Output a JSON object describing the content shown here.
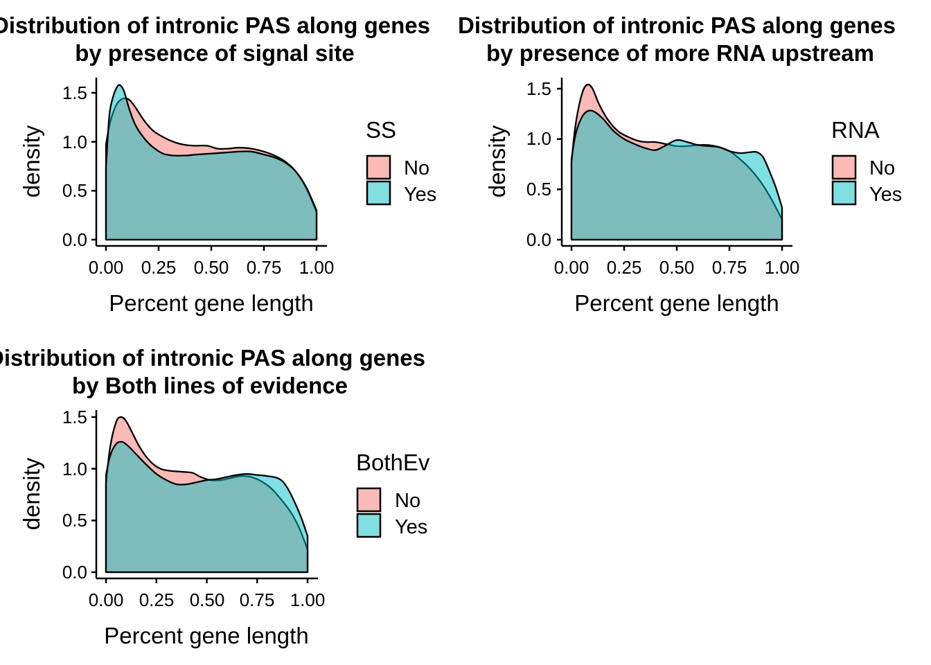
{
  "chart_data": [
    {
      "type": "area",
      "title_line1": "Distribution of intronic PAS along genes",
      "title_line2": "by presence of signal site",
      "xlabel": "Percent gene length",
      "ylabel": "density",
      "xlim": [
        0,
        1
      ],
      "ylim": [
        0,
        1.6
      ],
      "x_ticks": [
        "0.00",
        "0.25",
        "0.50",
        "0.75",
        "1.00"
      ],
      "y_ticks": [
        "0.0",
        "0.5",
        "1.0",
        "1.5"
      ],
      "legend": {
        "title": "SS",
        "items": [
          "No",
          "Yes"
        ]
      },
      "series": [
        {
          "name": "No",
          "color": "#F8766D",
          "points": [
            [
              0,
              0.97
            ],
            [
              0.02,
              1.2
            ],
            [
              0.05,
              1.38
            ],
            [
              0.08,
              1.44
            ],
            [
              0.11,
              1.43
            ],
            [
              0.14,
              1.35
            ],
            [
              0.18,
              1.22
            ],
            [
              0.22,
              1.12
            ],
            [
              0.27,
              1.05
            ],
            [
              0.32,
              1.0
            ],
            [
              0.37,
              0.97
            ],
            [
              0.42,
              0.96
            ],
            [
              0.48,
              0.96
            ],
            [
              0.53,
              0.93
            ],
            [
              0.58,
              0.93
            ],
            [
              0.63,
              0.94
            ],
            [
              0.69,
              0.93
            ],
            [
              0.75,
              0.9
            ],
            [
              0.8,
              0.86
            ],
            [
              0.85,
              0.8
            ],
            [
              0.9,
              0.7
            ],
            [
              0.95,
              0.53
            ],
            [
              1.0,
              0.28
            ]
          ]
        },
        {
          "name": "Yes",
          "color": "#00BFC4",
          "points": [
            [
              0,
              0.74
            ],
            [
              0.015,
              1.25
            ],
            [
              0.03,
              1.43
            ],
            [
              0.05,
              1.55
            ],
            [
              0.065,
              1.58
            ],
            [
              0.085,
              1.52
            ],
            [
              0.11,
              1.34
            ],
            [
              0.14,
              1.17
            ],
            [
              0.18,
              1.04
            ],
            [
              0.22,
              0.95
            ],
            [
              0.27,
              0.88
            ],
            [
              0.32,
              0.86
            ],
            [
              0.38,
              0.86
            ],
            [
              0.43,
              0.87
            ],
            [
              0.5,
              0.88
            ],
            [
              0.57,
              0.89
            ],
            [
              0.63,
              0.9
            ],
            [
              0.69,
              0.9
            ],
            [
              0.75,
              0.87
            ],
            [
              0.8,
              0.84
            ],
            [
              0.85,
              0.79
            ],
            [
              0.9,
              0.7
            ],
            [
              0.95,
              0.54
            ],
            [
              1.0,
              0.3
            ]
          ]
        }
      ]
    },
    {
      "type": "area",
      "title_line1": "Distribution of intronic PAS along genes",
      "title_line2": "by presence of more RNA upstream",
      "xlabel": "Percent gene length",
      "ylabel": "density",
      "xlim": [
        0,
        1
      ],
      "ylim": [
        0,
        1.6
      ],
      "x_ticks": [
        "0.00",
        "0.25",
        "0.50",
        "0.75",
        "1.00"
      ],
      "y_ticks": [
        "0.0",
        "0.5",
        "1.0",
        "1.5"
      ],
      "legend": {
        "title": "RNA",
        "items": [
          "No",
          "Yes"
        ]
      },
      "series": [
        {
          "name": "No",
          "color": "#F8766D",
          "points": [
            [
              0,
              0.77
            ],
            [
              0.02,
              1.15
            ],
            [
              0.05,
              1.45
            ],
            [
              0.075,
              1.54
            ],
            [
              0.1,
              1.5
            ],
            [
              0.13,
              1.35
            ],
            [
              0.17,
              1.2
            ],
            [
              0.22,
              1.08
            ],
            [
              0.27,
              1.02
            ],
            [
              0.32,
              0.98
            ],
            [
              0.36,
              0.97
            ],
            [
              0.4,
              0.97
            ],
            [
              0.45,
              0.95
            ],
            [
              0.5,
              0.93
            ],
            [
              0.55,
              0.93
            ],
            [
              0.6,
              0.94
            ],
            [
              0.65,
              0.94
            ],
            [
              0.7,
              0.92
            ],
            [
              0.75,
              0.88
            ],
            [
              0.8,
              0.8
            ],
            [
              0.85,
              0.7
            ],
            [
              0.9,
              0.57
            ],
            [
              0.95,
              0.4
            ],
            [
              1.0,
              0.2
            ]
          ]
        },
        {
          "name": "Yes",
          "color": "#00BFC4",
          "points": [
            [
              0,
              0.8
            ],
            [
              0.02,
              1.05
            ],
            [
              0.05,
              1.22
            ],
            [
              0.08,
              1.28
            ],
            [
              0.11,
              1.27
            ],
            [
              0.15,
              1.2
            ],
            [
              0.2,
              1.08
            ],
            [
              0.25,
              1.0
            ],
            [
              0.3,
              0.95
            ],
            [
              0.35,
              0.91
            ],
            [
              0.4,
              0.89
            ],
            [
              0.45,
              0.94
            ],
            [
              0.5,
              0.99
            ],
            [
              0.55,
              0.97
            ],
            [
              0.6,
              0.94
            ],
            [
              0.65,
              0.93
            ],
            [
              0.7,
              0.92
            ],
            [
              0.75,
              0.88
            ],
            [
              0.8,
              0.86
            ],
            [
              0.85,
              0.87
            ],
            [
              0.88,
              0.87
            ],
            [
              0.91,
              0.82
            ],
            [
              0.94,
              0.68
            ],
            [
              0.97,
              0.52
            ],
            [
              1.0,
              0.32
            ]
          ]
        }
      ]
    },
    {
      "type": "area",
      "title_line1": "Distribution of intronic PAS along genes",
      "title_line2": "by Both lines of evidence",
      "xlabel": "Percent gene length",
      "ylabel": "density",
      "xlim": [
        0,
        1
      ],
      "ylim": [
        0,
        1.6
      ],
      "x_ticks": [
        "0.00",
        "0.25",
        "0.50",
        "0.75",
        "1.00"
      ],
      "y_ticks": [
        "0.0",
        "0.5",
        "1.0",
        "1.5"
      ],
      "legend": {
        "title": "BothEv",
        "items": [
          "No",
          "Yes"
        ]
      },
      "series": [
        {
          "name": "No",
          "color": "#F8766D",
          "points": [
            [
              0,
              0.85
            ],
            [
              0.02,
              1.2
            ],
            [
              0.05,
              1.45
            ],
            [
              0.075,
              1.5
            ],
            [
              0.1,
              1.46
            ],
            [
              0.13,
              1.35
            ],
            [
              0.17,
              1.2
            ],
            [
              0.22,
              1.07
            ],
            [
              0.27,
              1.0
            ],
            [
              0.32,
              0.98
            ],
            [
              0.38,
              0.97
            ],
            [
              0.43,
              0.96
            ],
            [
              0.47,
              0.92
            ],
            [
              0.52,
              0.89
            ],
            [
              0.57,
              0.89
            ],
            [
              0.62,
              0.91
            ],
            [
              0.67,
              0.93
            ],
            [
              0.72,
              0.92
            ],
            [
              0.77,
              0.88
            ],
            [
              0.82,
              0.81
            ],
            [
              0.87,
              0.7
            ],
            [
              0.92,
              0.57
            ],
            [
              0.96,
              0.42
            ],
            [
              1.0,
              0.22
            ]
          ]
        },
        {
          "name": "Yes",
          "color": "#00BFC4",
          "points": [
            [
              0,
              0.94
            ],
            [
              0.02,
              1.12
            ],
            [
              0.05,
              1.24
            ],
            [
              0.08,
              1.26
            ],
            [
              0.11,
              1.22
            ],
            [
              0.15,
              1.14
            ],
            [
              0.2,
              1.04
            ],
            [
              0.25,
              0.95
            ],
            [
              0.3,
              0.89
            ],
            [
              0.35,
              0.85
            ],
            [
              0.4,
              0.85
            ],
            [
              0.45,
              0.87
            ],
            [
              0.5,
              0.89
            ],
            [
              0.55,
              0.9
            ],
            [
              0.6,
              0.92
            ],
            [
              0.65,
              0.94
            ],
            [
              0.7,
              0.95
            ],
            [
              0.75,
              0.94
            ],
            [
              0.8,
              0.93
            ],
            [
              0.85,
              0.91
            ],
            [
              0.88,
              0.87
            ],
            [
              0.91,
              0.78
            ],
            [
              0.94,
              0.66
            ],
            [
              0.97,
              0.52
            ],
            [
              1.0,
              0.35
            ]
          ]
        }
      ]
    }
  ]
}
